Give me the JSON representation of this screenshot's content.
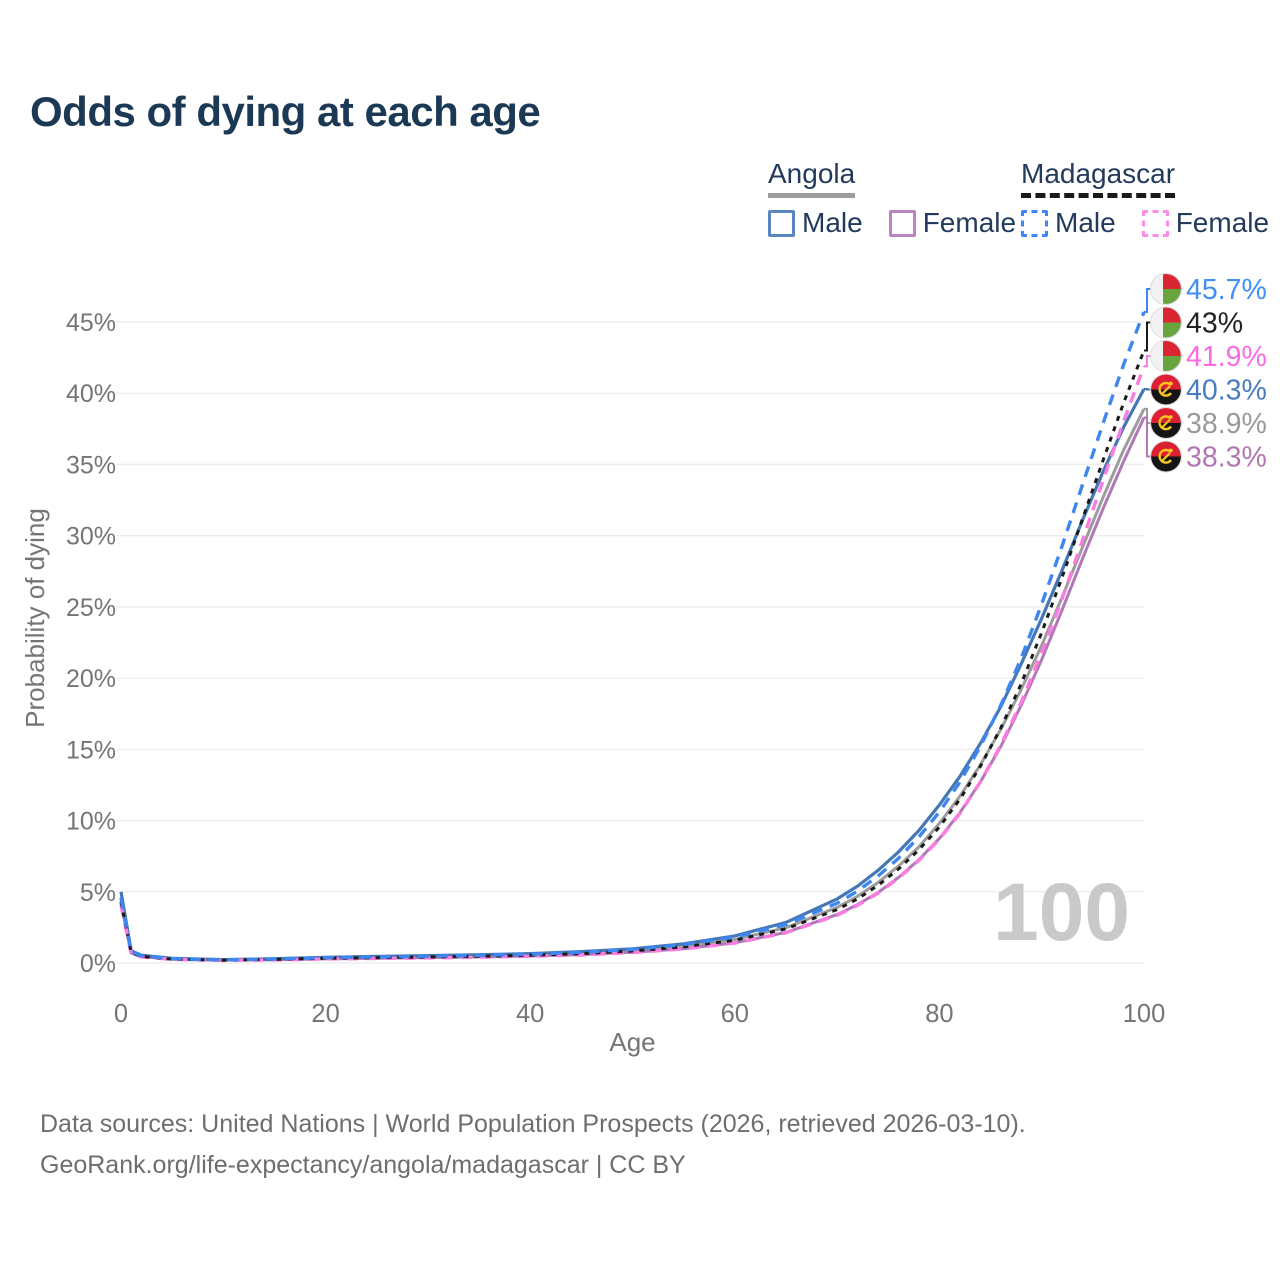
{
  "title": "Odds of dying at each age",
  "legend": {
    "groups": [
      {
        "id": "angola",
        "name": "Angola",
        "underline_style": "solid",
        "underline_color": "#9e9e9e",
        "items": [
          {
            "id": "male",
            "label": "Male",
            "color": "#5b87c0",
            "dashed": false
          },
          {
            "id": "female",
            "label": "Female",
            "color": "#bc84be",
            "dashed": false
          }
        ]
      },
      {
        "id": "madagascar",
        "name": "Madagascar",
        "underline_style": "dashed",
        "underline_color": "#1a1a1a",
        "items": [
          {
            "id": "male",
            "label": "Male",
            "color": "#4285f4",
            "dashed": true
          },
          {
            "id": "female",
            "label": "Female",
            "color": "#fc8be7",
            "dashed": true
          }
        ]
      }
    ]
  },
  "y_axis": {
    "label": "Probability of dying",
    "tick_values": [
      0,
      5,
      10,
      15,
      20,
      25,
      30,
      35,
      40,
      45
    ],
    "tick_labels": [
      "0%",
      "5%",
      "10%",
      "15%",
      "20%",
      "25%",
      "30%",
      "35%",
      "40%",
      "45%"
    ]
  },
  "x_axis": {
    "label": "Age",
    "tick_values": [
      0,
      20,
      40,
      60,
      80,
      100
    ],
    "tick_labels": [
      "0",
      "20",
      "40",
      "60",
      "80",
      "100"
    ]
  },
  "watermark": "100",
  "footer": {
    "line1": "Data sources: United Nations | World Population Prospects (2026, retrieved 2026-03-10).",
    "line2": "GeoRank.org/life-expectancy/angola/madagascar | CC BY"
  },
  "style": {
    "grid_color": "#ececec",
    "tick_color": "#757575",
    "axis_label_color": "#757575",
    "watermark_color": "#c9c9c9",
    "title_color": "#1b3954",
    "legend_text_color": "#233a5c"
  },
  "flags": {
    "angola": {
      "red": "#dd1f34",
      "black": "#151515",
      "yellow": "#f7c71d"
    },
    "madagascar": {
      "white": "#f2f2f2",
      "red": "#da2632",
      "green": "#69a53e"
    }
  },
  "chart_data": {
    "type": "line",
    "title": "Odds of dying at each age",
    "xlabel": "Age",
    "ylabel": "Probability of dying",
    "xlim": [
      0,
      100
    ],
    "ylim": [
      0,
      47
    ],
    "grid": "horizontal-only",
    "legend_position": "top-right",
    "x": [
      0,
      1,
      2,
      5,
      10,
      15,
      20,
      25,
      30,
      35,
      40,
      45,
      50,
      55,
      60,
      65,
      70,
      72,
      74,
      76,
      78,
      80,
      82,
      84,
      86,
      88,
      90,
      92,
      94,
      96,
      98,
      100
    ],
    "series": [
      {
        "id": "madagascar-male",
        "name": "Madagascar Male",
        "country": "Madagascar",
        "sex": "Male",
        "color": "#3e86f0",
        "label_color": "#418ff4",
        "dash": "11 8",
        "width": 3.4,
        "flag": "madagascar",
        "end_label": "45.7%",
        "values": [
          4.55,
          0.8,
          0.5,
          0.3,
          0.22,
          0.28,
          0.38,
          0.43,
          0.48,
          0.54,
          0.62,
          0.76,
          0.96,
          1.3,
          1.82,
          2.7,
          4.2,
          5.05,
          6.1,
          7.35,
          8.85,
          10.6,
          12.7,
          15.2,
          18.1,
          21.4,
          25.2,
          29.3,
          33.6,
          37.9,
          42.0,
          45.7
        ]
      },
      {
        "id": "madagascar-both",
        "name": "Madagascar Both sexes",
        "country": "Madagascar",
        "sex": "Both",
        "color": "#1a1a1a",
        "label_color": "#222222",
        "dash": "5 6",
        "width": 3,
        "flag": "madagascar",
        "end_label": "43%",
        "values": [
          4.3,
          0.72,
          0.46,
          0.27,
          0.2,
          0.25,
          0.33,
          0.37,
          0.42,
          0.47,
          0.54,
          0.66,
          0.84,
          1.14,
          1.6,
          2.4,
          3.75,
          4.5,
          5.45,
          6.6,
          7.95,
          9.55,
          11.5,
          13.8,
          16.5,
          19.6,
          23.2,
          27.1,
          31.2,
          35.3,
          39.3,
          43.0
        ]
      },
      {
        "id": "madagascar-female",
        "name": "Madagascar Female",
        "country": "Madagascar",
        "sex": "Female",
        "color": "#fb7ce1",
        "label_color": "#fb6ae0",
        "dash": "11 8",
        "width": 3.4,
        "flag": "madagascar",
        "end_label": "41.9%",
        "values": [
          4.05,
          0.65,
          0.42,
          0.25,
          0.18,
          0.22,
          0.28,
          0.32,
          0.36,
          0.41,
          0.47,
          0.57,
          0.73,
          0.99,
          1.4,
          2.12,
          3.35,
          4.05,
          4.9,
          5.95,
          7.2,
          8.7,
          10.5,
          12.7,
          15.3,
          18.3,
          21.8,
          25.6,
          29.7,
          33.9,
          38.0,
          41.9
        ]
      },
      {
        "id": "angola-male",
        "name": "Angola Male",
        "country": "Angola",
        "sex": "Male",
        "color": "#4577b6",
        "label_color": "#4a7cc0",
        "dash": null,
        "width": 3.2,
        "flag": "angola",
        "end_label": "40.3%",
        "values": [
          5.0,
          0.85,
          0.55,
          0.32,
          0.24,
          0.3,
          0.4,
          0.46,
          0.52,
          0.58,
          0.66,
          0.8,
          1.0,
          1.35,
          1.9,
          2.85,
          4.5,
          5.4,
          6.5,
          7.8,
          9.3,
          11.1,
          13.1,
          15.4,
          18.0,
          21.0,
          24.2,
          27.6,
          31.1,
          34.5,
          37.6,
          40.3
        ]
      },
      {
        "id": "angola-both",
        "name": "Angola Both sexes",
        "country": "Angola",
        "sex": "Both",
        "color": "#9c9c9c",
        "label_color": "#9a9a9a",
        "dash": null,
        "width": 3,
        "flag": "angola",
        "end_label": "38.9%",
        "values": [
          4.6,
          0.78,
          0.5,
          0.3,
          0.22,
          0.27,
          0.35,
          0.4,
          0.45,
          0.5,
          0.57,
          0.69,
          0.87,
          1.17,
          1.65,
          2.48,
          3.9,
          4.68,
          5.65,
          6.8,
          8.15,
          9.8,
          11.7,
          13.9,
          16.4,
          19.2,
          22.3,
          25.7,
          29.2,
          32.7,
          36.0,
          38.9
        ]
      },
      {
        "id": "angola-female",
        "name": "Angola Female",
        "country": "Angola",
        "sex": "Female",
        "color": "#b178b8",
        "label_color": "#b277b2",
        "dash": null,
        "width": 3,
        "flag": "angola",
        "end_label": "38.3%",
        "values": [
          4.2,
          0.7,
          0.45,
          0.27,
          0.19,
          0.23,
          0.29,
          0.33,
          0.38,
          0.43,
          0.49,
          0.59,
          0.75,
          1.0,
          1.42,
          2.15,
          3.4,
          4.1,
          4.95,
          6.0,
          7.25,
          8.75,
          10.55,
          12.7,
          15.2,
          18.1,
          21.3,
          24.8,
          28.4,
          31.9,
          35.2,
          38.3
        ]
      }
    ]
  }
}
